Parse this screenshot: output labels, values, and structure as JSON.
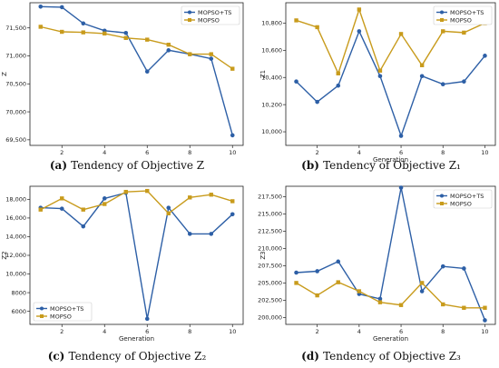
{
  "chart_data": [
    {
      "type": "line",
      "caption_letter": "(a)",
      "caption_text": "Tendency of Objective Z",
      "xlabel": "",
      "ylabel": "Z",
      "xlim": [
        0.5,
        10.5
      ],
      "ylim": [
        69400,
        71950
      ],
      "xticks": [
        2,
        4,
        6,
        8,
        10
      ],
      "xtick_labels": [
        "2",
        "4",
        "6",
        "8",
        "10"
      ],
      "yticks": [
        69500,
        70000,
        70500,
        71000,
        71500
      ],
      "ytick_labels": [
        "69,500",
        "70,000",
        "70,500",
        "71,000",
        "71,500"
      ],
      "legend_position": "upper-right",
      "x": [
        1,
        2,
        3,
        4,
        5,
        6,
        7,
        8,
        9,
        10
      ],
      "series": [
        {
          "name": "MOPSO+TS",
          "color": "#2d5fa6",
          "marker": "circle",
          "values": [
            71880,
            71870,
            71580,
            71450,
            71410,
            70720,
            71100,
            71030,
            70950,
            69580
          ]
        },
        {
          "name": "MOPSO",
          "color": "#c89b1c",
          "marker": "square",
          "values": [
            71520,
            71430,
            71420,
            71400,
            71320,
            71290,
            71200,
            71030,
            71030,
            70770
          ]
        }
      ]
    },
    {
      "type": "line",
      "caption_letter": "(b)",
      "caption_text": "Tendency of Objective Z₁",
      "xlabel": "Generation",
      "ylabel": "Z1",
      "xlim": [
        0.5,
        10.5
      ],
      "ylim": [
        9900,
        10950
      ],
      "xticks": [
        2,
        4,
        6,
        8,
        10
      ],
      "xtick_labels": [
        "2",
        "4",
        "6",
        "8",
        "10"
      ],
      "yticks": [
        10000,
        10200,
        10400,
        10600,
        10800
      ],
      "ytick_labels": [
        "10,000",
        "10,200",
        "10,400",
        "10,600",
        "10,800"
      ],
      "legend_position": "upper-right",
      "x": [
        1,
        2,
        3,
        4,
        5,
        6,
        7,
        8,
        9,
        10
      ],
      "series": [
        {
          "name": "MOPSO+TS",
          "color": "#2d5fa6",
          "marker": "circle",
          "values": [
            10370,
            10220,
            10340,
            10740,
            10410,
            9970,
            10410,
            10350,
            10370,
            10560
          ]
        },
        {
          "name": "MOPSO",
          "color": "#c89b1c",
          "marker": "square",
          "values": [
            10820,
            10770,
            10430,
            10900,
            10450,
            10720,
            10490,
            10740,
            10730,
            10800
          ]
        }
      ]
    },
    {
      "type": "line",
      "caption_letter": "(c)",
      "caption_text": "Tendency of Objective Z₂",
      "xlabel": "Generation",
      "ylabel": "Z2",
      "xlim": [
        0.5,
        10.5
      ],
      "ylim": [
        4600,
        19400
      ],
      "xticks": [
        2,
        4,
        6,
        8,
        10
      ],
      "xtick_labels": [
        "2",
        "4",
        "6",
        "8",
        "10"
      ],
      "yticks": [
        6000,
        8000,
        10000,
        12000,
        14000,
        16000,
        18000
      ],
      "ytick_labels": [
        "6000",
        "8000",
        "10,000",
        "12,000",
        "14,000",
        "16,000",
        "18,000"
      ],
      "legend_position": "lower-left",
      "x": [
        1,
        2,
        3,
        4,
        5,
        6,
        7,
        8,
        9,
        10
      ],
      "series": [
        {
          "name": "MOPSO+TS",
          "color": "#2d5fa6",
          "marker": "circle",
          "values": [
            17100,
            17000,
            15100,
            18100,
            18700,
            5200,
            17100,
            14300,
            14300,
            16400
          ]
        },
        {
          "name": "MOPSO",
          "color": "#c89b1c",
          "marker": "square",
          "values": [
            16900,
            18100,
            16900,
            17500,
            18800,
            18900,
            16500,
            18200,
            18500,
            17800
          ]
        }
      ]
    },
    {
      "type": "line",
      "caption_letter": "(d)",
      "caption_text": "Tendency of Objective Z₃",
      "xlabel": "Generation",
      "ylabel": "Z3",
      "xlim": [
        0.5,
        10.5
      ],
      "ylim": [
        199000,
        219000
      ],
      "xticks": [
        2,
        4,
        6,
        8,
        10
      ],
      "xtick_labels": [
        "2",
        "4",
        "6",
        "8",
        "10"
      ],
      "yticks": [
        200000,
        202500,
        205000,
        207500,
        210000,
        212500,
        215000,
        217500
      ],
      "ytick_labels": [
        "200,000",
        "202,500",
        "205,000",
        "207,500",
        "210,000",
        "212,500",
        "215,000",
        "217,500"
      ],
      "legend_position": "upper-right",
      "x": [
        1,
        2,
        3,
        4,
        5,
        6,
        7,
        8,
        9,
        10
      ],
      "series": [
        {
          "name": "MOPSO+TS",
          "color": "#2d5fa6",
          "marker": "circle",
          "values": [
            206500,
            206700,
            208100,
            203400,
            202700,
            218800,
            203800,
            207400,
            207100,
            199600
          ]
        },
        {
          "name": "MOPSO",
          "color": "#c89b1c",
          "marker": "square",
          "values": [
            205000,
            203200,
            205100,
            203800,
            202200,
            201800,
            205000,
            201900,
            201400,
            201400
          ]
        }
      ]
    }
  ]
}
